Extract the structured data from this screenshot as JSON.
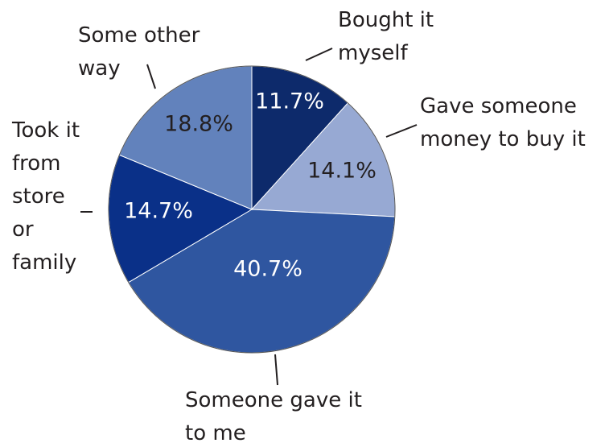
{
  "chart_data": {
    "type": "pie",
    "categories": [
      "Bought it\nmyself",
      "Gave someone\nmoney to buy it",
      "Someone gave it\nto me",
      "Took it\nfrom\nstore\nor\nfamily",
      "Some other\nway"
    ],
    "values": [
      11.7,
      14.1,
      40.7,
      14.7,
      18.8
    ],
    "value_labels": [
      "11.7%",
      "14.1%",
      "40.7%",
      "14.7%",
      "18.8%"
    ],
    "colors": [
      "#0d2a6b",
      "#97a9d3",
      "#2f56a0",
      "#0a3088",
      "#6282bc"
    ]
  }
}
